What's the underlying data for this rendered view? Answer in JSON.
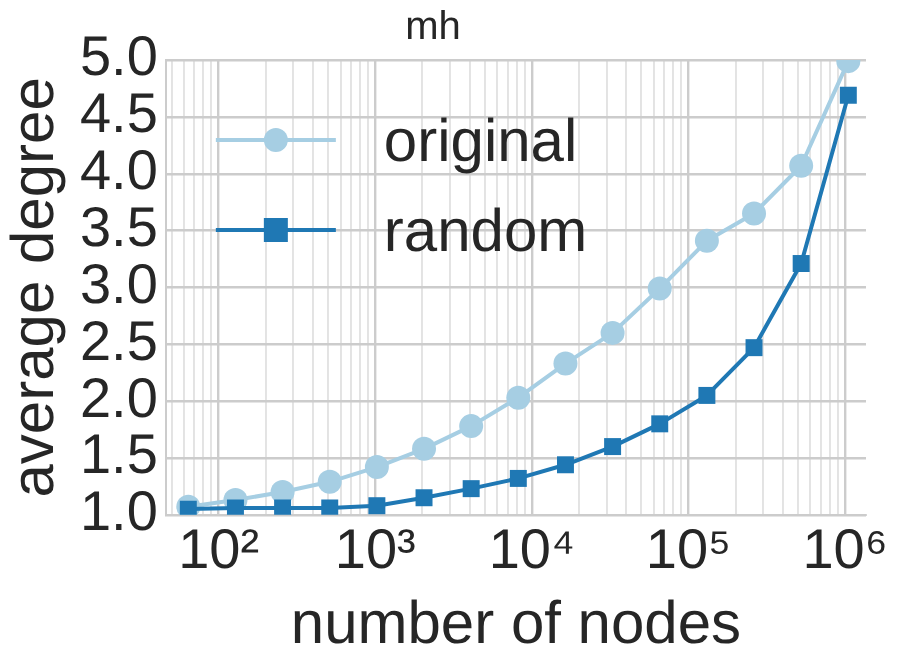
{
  "chart_data": {
    "type": "line",
    "title": "mh",
    "xlabel": "number of nodes",
    "ylabel": "average degree",
    "x": [
      64,
      128,
      256,
      512,
      1024,
      2048,
      4096,
      8192,
      16384,
      32768,
      65536,
      131072,
      262144,
      524288,
      1048576
    ],
    "series": [
      {
        "name": "original",
        "color": "#a6cee3",
        "marker": "circle",
        "values": [
          1.07,
          1.13,
          1.2,
          1.29,
          1.42,
          1.58,
          1.78,
          2.03,
          2.33,
          2.6,
          2.99,
          3.41,
          3.65,
          4.07,
          4.99
        ]
      },
      {
        "name": "random",
        "color": "#1f78b4",
        "marker": "square",
        "values": [
          1.05,
          1.06,
          1.06,
          1.06,
          1.08,
          1.15,
          1.23,
          1.32,
          1.44,
          1.6,
          1.8,
          2.05,
          2.47,
          3.21,
          4.69
        ]
      }
    ],
    "log": "x",
    "xlim": [
      46,
      1360000
    ],
    "ylim": [
      1,
      5
    ],
    "xticks": [
      {
        "value": 50,
        "label": null
      },
      {
        "value": 60,
        "label": null
      },
      {
        "value": 70,
        "label": null
      },
      {
        "value": 80,
        "label": null
      },
      {
        "value": 90,
        "label": null
      },
      {
        "value": 100,
        "label": "10²"
      },
      {
        "value": 200,
        "label": null
      },
      {
        "value": 300,
        "label": null
      },
      {
        "value": 400,
        "label": null
      },
      {
        "value": 500,
        "label": null
      },
      {
        "value": 600,
        "label": null
      },
      {
        "value": 700,
        "label": null
      },
      {
        "value": 800,
        "label": null
      },
      {
        "value": 900,
        "label": null
      },
      {
        "value": 1000,
        "label": "10³"
      },
      {
        "value": 2000,
        "label": null
      },
      {
        "value": 3000,
        "label": null
      },
      {
        "value": 4000,
        "label": null
      },
      {
        "value": 5000,
        "label": null
      },
      {
        "value": 6000,
        "label": null
      },
      {
        "value": 7000,
        "label": null
      },
      {
        "value": 8000,
        "label": null
      },
      {
        "value": 9000,
        "label": null
      },
      {
        "value": 10000,
        "label": "10⁴"
      },
      {
        "value": 20000,
        "label": null
      },
      {
        "value": 30000,
        "label": null
      },
      {
        "value": 40000,
        "label": null
      },
      {
        "value": 50000,
        "label": null
      },
      {
        "value": 60000,
        "label": null
      },
      {
        "value": 70000,
        "label": null
      },
      {
        "value": 80000,
        "label": null
      },
      {
        "value": 90000,
        "label": null
      },
      {
        "value": 100000,
        "label": "10⁵"
      },
      {
        "value": 200000,
        "label": null
      },
      {
        "value": 300000,
        "label": null
      },
      {
        "value": 400000,
        "label": null
      },
      {
        "value": 500000,
        "label": null
      },
      {
        "value": 600000,
        "label": null
      },
      {
        "value": 700000,
        "label": null
      },
      {
        "value": 800000,
        "label": null
      },
      {
        "value": 900000,
        "label": null
      },
      {
        "value": 1000000,
        "label": "10⁶"
      }
    ],
    "yticks": [
      {
        "value": 1,
        "label": "1.0"
      },
      {
        "value": 1.5,
        "label": "1.5"
      },
      {
        "value": 2,
        "label": "2.0"
      },
      {
        "value": 2.5,
        "label": "2.5"
      },
      {
        "value": 3,
        "label": "3.0"
      },
      {
        "value": 3.5,
        "label": "3.5"
      },
      {
        "value": 4,
        "label": "4.0"
      },
      {
        "value": 4.5,
        "label": "4.5"
      },
      {
        "value": 5,
        "label": "5.0"
      }
    ],
    "grid": true,
    "legend": "top left",
    "line_style": "solid"
  }
}
